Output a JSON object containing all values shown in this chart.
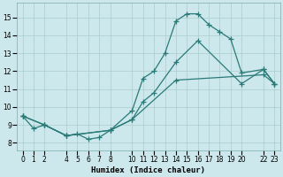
{
  "xlabel": "Humidex (Indice chaleur)",
  "bg_color": "#cce8ec",
  "grid_color": "#aacccc",
  "line_color": "#2a7a78",
  "marker": "+",
  "markersize": 4,
  "linewidth": 0.9,
  "xlim": [
    -0.5,
    23.5
  ],
  "ylim": [
    7.6,
    15.8
  ],
  "xticks": [
    0,
    1,
    2,
    4,
    5,
    6,
    7,
    8,
    10,
    11,
    12,
    13,
    14,
    15,
    16,
    17,
    18,
    19,
    20,
    22,
    23
  ],
  "yticks": [
    8,
    9,
    10,
    11,
    12,
    13,
    14,
    15
  ],
  "line1_x": [
    0,
    1,
    2,
    4,
    5,
    6,
    7,
    8,
    10,
    11,
    12,
    13,
    14,
    15,
    16,
    17,
    18,
    19,
    20,
    22,
    23
  ],
  "line1_y": [
    9.5,
    8.8,
    9.0,
    8.4,
    8.5,
    8.2,
    8.3,
    8.7,
    9.8,
    11.6,
    12.0,
    13.0,
    14.8,
    15.2,
    15.2,
    14.6,
    14.2,
    13.8,
    11.9,
    12.1,
    11.3
  ],
  "line2_x": [
    0,
    2,
    4,
    8,
    10,
    11,
    12,
    14,
    16,
    20,
    22,
    23
  ],
  "line2_y": [
    9.5,
    9.0,
    8.4,
    8.7,
    9.3,
    10.3,
    10.8,
    12.5,
    13.7,
    11.3,
    12.1,
    11.3
  ],
  "line3_x": [
    0,
    2,
    4,
    8,
    10,
    14,
    22,
    23
  ],
  "line3_y": [
    9.5,
    9.0,
    8.4,
    8.7,
    9.3,
    11.5,
    11.8,
    11.3
  ]
}
